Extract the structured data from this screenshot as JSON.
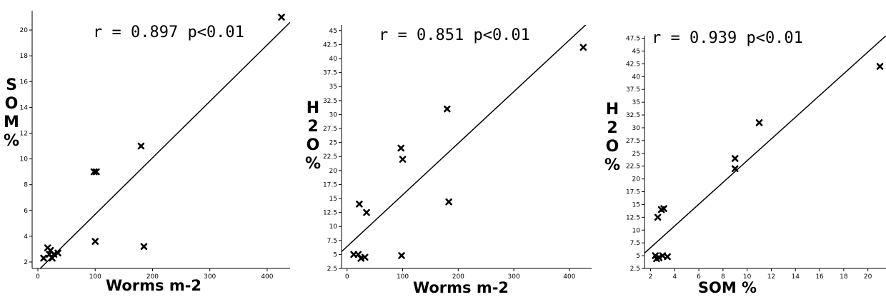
{
  "colors": {
    "axis": "#000000",
    "marker": "#000000",
    "fit_line": "#000000",
    "background": "#ffffff"
  },
  "marker_icon": "x-cross-marker",
  "chart_data": [
    {
      "type": "scatter",
      "stat_label": "r = 0.897 p<0.01",
      "xlabel": "Worms m-2",
      "ylabel_chars": [
        "S",
        "O",
        "M",
        "%"
      ],
      "xlim": [
        -10,
        440
      ],
      "ylim": [
        1.5,
        21.5
      ],
      "xticks": [
        0,
        100,
        200,
        300,
        400
      ],
      "xtick_labels": [
        "0",
        "100",
        "200",
        "300",
        "400"
      ],
      "yticks": [
        2,
        4,
        6,
        8,
        10,
        12,
        14,
        16,
        18,
        20
      ],
      "ytick_labels": [
        "2",
        "4",
        "6",
        "8",
        "10",
        "12",
        "14",
        "16",
        "18",
        "20"
      ],
      "points": [
        {
          "x": 10,
          "y": 2.3
        },
        {
          "x": 17,
          "y": 3.1
        },
        {
          "x": 20,
          "y": 2.6
        },
        {
          "x": 22,
          "y": 2.9
        },
        {
          "x": 25,
          "y": 2.3
        },
        {
          "x": 28,
          "y": 2.6
        },
        {
          "x": 35,
          "y": 2.7
        },
        {
          "x": 98,
          "y": 9.0
        },
        {
          "x": 102,
          "y": 9.0
        },
        {
          "x": 100,
          "y": 3.6
        },
        {
          "x": 180,
          "y": 11.0
        },
        {
          "x": 185,
          "y": 3.2
        },
        {
          "x": 425,
          "y": 21.0
        }
      ],
      "fit_line": [
        [
          -5,
          1.1
        ],
        [
          440,
          20.6
        ]
      ],
      "grid": false
    },
    {
      "type": "scatter",
      "stat_label": "r = 0.851 p<0.01",
      "xlabel": "Worms m-2",
      "ylabel_chars": [
        "H",
        "2",
        "O",
        "%"
      ],
      "xlim": [
        -10,
        440
      ],
      "ylim": [
        2.5,
        46
      ],
      "xticks": [
        0,
        100,
        200,
        300,
        400
      ],
      "xtick_labels": [
        "0",
        "100",
        "200",
        "300",
        "400"
      ],
      "yticks": [
        2.5,
        5,
        7.5,
        10,
        12.5,
        15,
        17.5,
        20,
        22.5,
        25,
        27.5,
        30,
        32.5,
        35,
        37.5,
        40,
        42.5,
        45
      ],
      "ytick_labels": [
        "2.5",
        "5",
        "7.5",
        "10",
        "12.5",
        "15",
        "17.5",
        "20",
        "22.5",
        "25",
        "27.5",
        "30",
        "32.5",
        "35",
        "37.5",
        "40",
        "42.5",
        "45"
      ],
      "points": [
        {
          "x": 12,
          "y": 5.0
        },
        {
          "x": 20,
          "y": 5.0
        },
        {
          "x": 25,
          "y": 4.3
        },
        {
          "x": 32,
          "y": 4.5
        },
        {
          "x": 22,
          "y": 14.0
        },
        {
          "x": 35,
          "y": 12.5
        },
        {
          "x": 98,
          "y": 4.8
        },
        {
          "x": 97,
          "y": 24.0
        },
        {
          "x": 100,
          "y": 22.0
        },
        {
          "x": 180,
          "y": 31.0
        },
        {
          "x": 183,
          "y": 14.4
        },
        {
          "x": 425,
          "y": 42.0
        }
      ],
      "fit_line": [
        [
          -10,
          5.5
        ],
        [
          440,
          47.0
        ]
      ],
      "grid": false
    },
    {
      "type": "scatter",
      "stat_label": "r = 0.939 p<0.01",
      "xlabel": "SOM %",
      "ylabel_chars": [
        "H",
        "2",
        "O",
        "%"
      ],
      "xlim": [
        1.5,
        21.5
      ],
      "ylim": [
        2.5,
        48
      ],
      "xticks": [
        2,
        4,
        6,
        8,
        10,
        12,
        14,
        16,
        18,
        20
      ],
      "xtick_labels": [
        "2",
        "4",
        "6",
        "8",
        "10",
        "12",
        "14",
        "16",
        "18",
        "20"
      ],
      "yticks": [
        2.5,
        5,
        7.5,
        10,
        12.5,
        15,
        17.5,
        20,
        22.5,
        25,
        27.5,
        30,
        32.5,
        35,
        37.5,
        40,
        42.5,
        45,
        47.5
      ],
      "ytick_labels": [
        "2.5",
        "5",
        "7.5",
        "10",
        "12.5",
        "15",
        "17.5",
        "20",
        "22.5",
        "25",
        "27.5",
        "30",
        "32.5",
        "35",
        "37.5",
        "40",
        "42.5",
        "45",
        "47.5"
      ],
      "points": [
        {
          "x": 2.4,
          "y": 5.0
        },
        {
          "x": 2.5,
          "y": 4.4
        },
        {
          "x": 2.7,
          "y": 4.6
        },
        {
          "x": 3.0,
          "y": 5.0
        },
        {
          "x": 3.4,
          "y": 4.8
        },
        {
          "x": 2.6,
          "y": 12.5
        },
        {
          "x": 2.9,
          "y": 14.0
        },
        {
          "x": 3.1,
          "y": 14.2
        },
        {
          "x": 9.0,
          "y": 24.0
        },
        {
          "x": 9.0,
          "y": 22.0
        },
        {
          "x": 11.0,
          "y": 31.0
        },
        {
          "x": 21.0,
          "y": 42.0
        }
      ],
      "fit_line": [
        [
          1.5,
          5.5
        ],
        [
          21.5,
          48.0
        ]
      ],
      "grid": false
    }
  ]
}
